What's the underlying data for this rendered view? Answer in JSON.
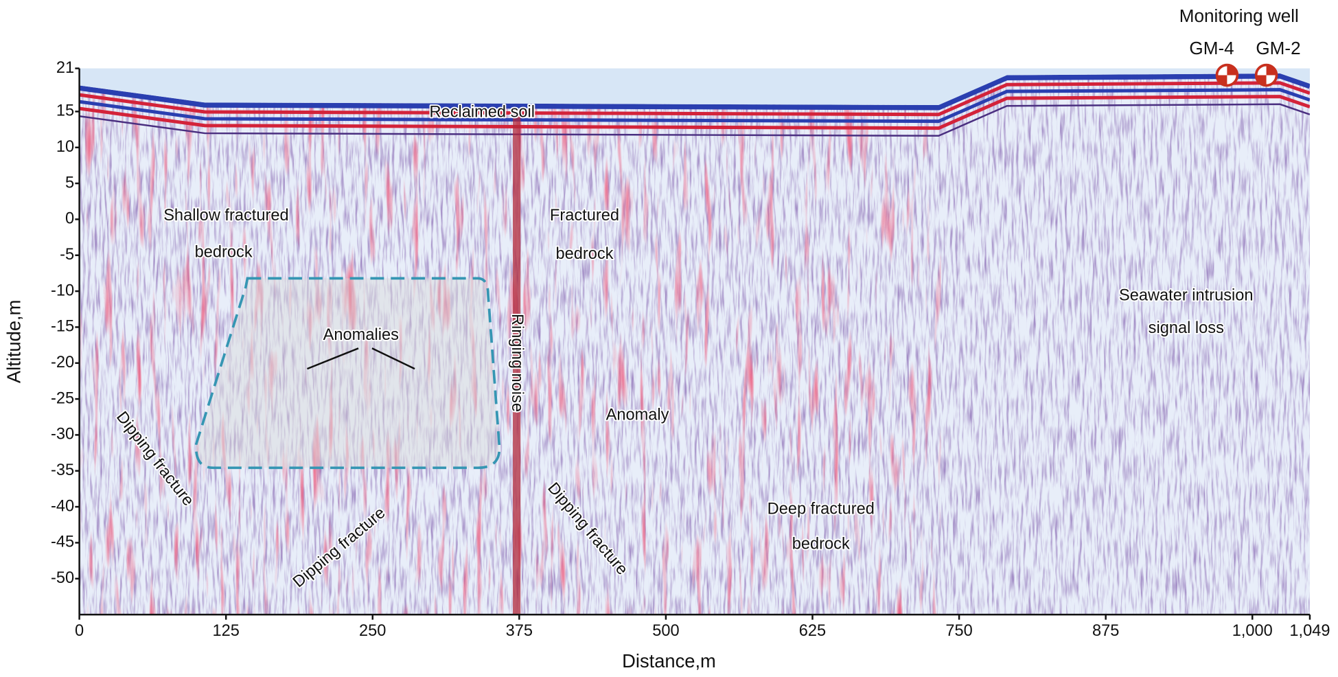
{
  "chart_data": {
    "type": "radargram",
    "xlabel": "Distance,m",
    "ylabel": "Altitude,m",
    "xlim": [
      0,
      1049
    ],
    "ylim": [
      -55,
      21
    ],
    "xticks": [
      0,
      125,
      250,
      375,
      500,
      625,
      750,
      875,
      {
        "value": 1000,
        "label": "1,000"
      },
      {
        "value": 1049,
        "label": "1,049"
      }
    ],
    "yticks": [
      21,
      15,
      10,
      5,
      0,
      -5,
      -10,
      -15,
      -20,
      -25,
      -30,
      -35,
      -40,
      -45,
      -50
    ],
    "annotations": [
      "Reclaimed soil",
      "Shallow fractured",
      "bedrock",
      "Fractured",
      "bedrock",
      "Ringing noise",
      "Anomalies",
      "Anomaly",
      "Dipping fracture",
      "Dipping fracture",
      "Dipping fracture",
      "Deep fractured",
      "bedrock",
      "Seawater intrusion",
      "signal loss"
    ],
    "wells_title": "Monitoring well",
    "wells": [
      "GM-4",
      "GM-2"
    ]
  }
}
